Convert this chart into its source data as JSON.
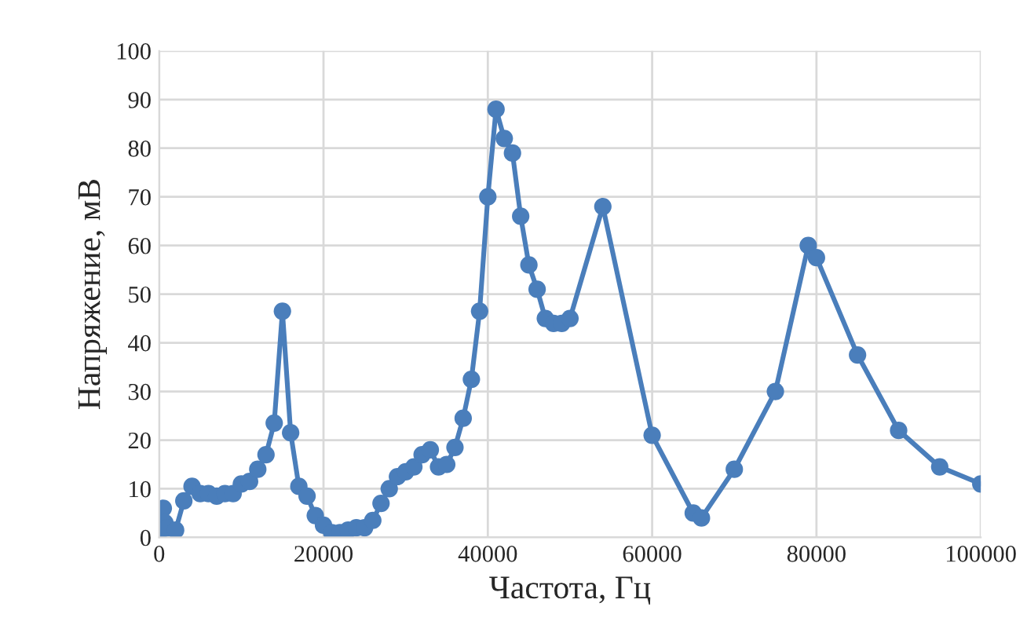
{
  "chart_data": {
    "type": "line",
    "xlabel": "Частота, Гц",
    "ylabel": "Напряжение, мВ",
    "x": [
      0,
      500,
      700,
      1000,
      2000,
      3000,
      4000,
      5000,
      6000,
      7000,
      8000,
      9000,
      10000,
      11000,
      12000,
      13000,
      14000,
      15000,
      16000,
      17000,
      18000,
      19000,
      20000,
      21000,
      22000,
      23000,
      24000,
      25000,
      26000,
      27000,
      28000,
      29000,
      30000,
      31000,
      32000,
      33000,
      34000,
      35000,
      36000,
      37000,
      38000,
      39000,
      40000,
      41000,
      42000,
      43000,
      44000,
      45000,
      46000,
      47000,
      48000,
      49000,
      50000,
      54000,
      60000,
      65000,
      66000,
      70000,
      75000,
      79000,
      80000,
      85000,
      90000,
      95000,
      100000
    ],
    "series": [
      {
        "color": "#4a7ebb",
        "values": [
          1,
          6,
          3,
          2,
          1.5,
          7.5,
          10.5,
          9,
          9,
          8.5,
          9,
          9,
          11,
          11.5,
          14,
          17,
          23.5,
          46.5,
          21.5,
          10.5,
          8.5,
          4.5,
          2.5,
          1,
          1,
          1.5,
          2,
          2,
          3.5,
          7,
          10,
          12.5,
          13.5,
          14.5,
          17,
          18,
          14.5,
          15,
          18.5,
          24.5,
          32.5,
          46.5,
          70,
          88,
          82,
          79,
          66,
          56,
          51,
          45,
          44,
          44,
          45,
          68,
          21,
          5,
          4,
          14,
          30,
          60,
          57.5,
          37.5,
          22,
          14.5,
          11
        ]
      }
    ],
    "xlim": [
      0,
      100000
    ],
    "ylim": [
      0,
      100
    ],
    "xticks": [
      0,
      20000,
      40000,
      60000,
      80000,
      100000
    ],
    "yticks": [
      0,
      10,
      20,
      30,
      40,
      50,
      60,
      70,
      80,
      90,
      100
    ],
    "grid": true,
    "marker": "circle",
    "line_style": "solid",
    "legend": false
  }
}
